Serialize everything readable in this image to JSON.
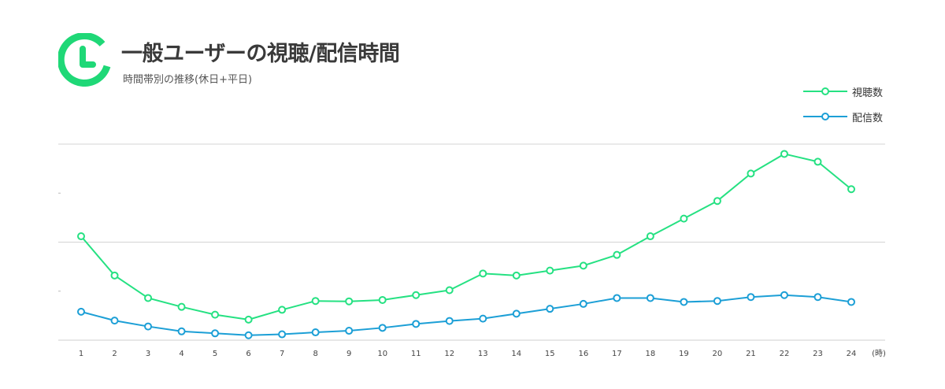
{
  "header": {
    "title": "一般ユーザーの視聴/配信時間",
    "subtitle": "時間帯別の推移(休日+平日)",
    "icon": "clock-icon"
  },
  "colors": {
    "accent": "#1fd877",
    "views": "#25e182",
    "broadcasts": "#1c9fd6",
    "grid": "#d4d4d4"
  },
  "chart_data": {
    "type": "line",
    "title": "一般ユーザーの視聴/配信時間",
    "subtitle": "時間帯別の推移(休日+平日)",
    "categories": [
      "1",
      "2",
      "3",
      "4",
      "5",
      "6",
      "7",
      "8",
      "9",
      "10",
      "11",
      "12",
      "13",
      "14",
      "15",
      "16",
      "17",
      "18",
      "19",
      "20",
      "21",
      "22",
      "23",
      "24"
    ],
    "x_unit_label": "(時)",
    "series": [
      {
        "name": "視聴数",
        "color": "#25e182",
        "values": [
          53,
          33,
          21.5,
          17,
          13,
          10.5,
          15.5,
          20,
          19.8,
          20.5,
          23,
          25.5,
          34,
          33,
          35.5,
          38,
          43.5,
          53,
          62,
          71,
          85,
          95,
          91,
          77
        ]
      },
      {
        "name": "配信数",
        "color": "#1c9fd6",
        "values": [
          14.5,
          10,
          7,
          4.5,
          3.5,
          2.5,
          3,
          4,
          4.8,
          6.3,
          8.3,
          9.8,
          11,
          13.5,
          16,
          18.5,
          21.5,
          21.5,
          19.5,
          20,
          22,
          23,
          22,
          19.5
        ]
      }
    ],
    "ylim": [
      0,
      100
    ],
    "major_grid": [
      50,
      100
    ],
    "minor_ticks": [
      25,
      75
    ],
    "grid": true,
    "legend_position": "top-right"
  }
}
